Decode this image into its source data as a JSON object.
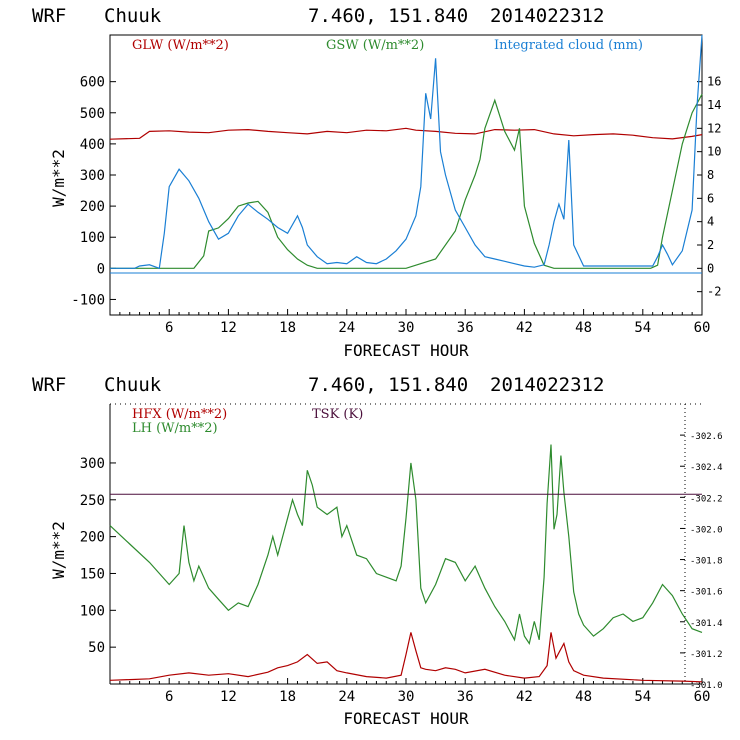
{
  "header": {
    "model": "WRF",
    "station": "Chuuk",
    "coords": "7.460, 151.840",
    "init": "2014022312"
  },
  "colors": {
    "red": "#b00000",
    "green": "#2e8b2e",
    "blue": "#1a7fd4",
    "purple": "#4b0f3b",
    "axis": "#000000"
  },
  "chart_data": [
    {
      "type": "line",
      "panel": "top",
      "xlabel": "FORECAST HOUR",
      "ylabel": "W/m**2",
      "xlim": [
        0,
        60
      ],
      "ylim": [
        -150,
        750
      ],
      "y2lim": [
        -4,
        20
      ],
      "xticks": [
        6,
        12,
        18,
        24,
        30,
        36,
        42,
        48,
        54,
        60
      ],
      "xtick_labels": [
        "6",
        "12",
        "18",
        "24",
        "30",
        "36",
        "42",
        "48",
        "54",
        "60"
      ],
      "yticks": [
        -100,
        0,
        100,
        200,
        300,
        400,
        500,
        600
      ],
      "ytick_labels": [
        "-100",
        "0",
        "100",
        "200",
        "300",
        "400",
        "500",
        "600"
      ],
      "y2ticks": [
        -2,
        0,
        2,
        4,
        6,
        8,
        10,
        12,
        14,
        16
      ],
      "y2tick_labels": [
        "-2",
        "0",
        "2",
        "4",
        "6",
        "8",
        "10",
        "12",
        "14",
        "16"
      ],
      "legend": [
        "GLW (W/m**2)",
        "GSW (W/m**2)",
        "Integrated cloud (mm)"
      ],
      "series": [
        {
          "name": "GLW (W/m**2)",
          "color": "red",
          "axis": "left",
          "x": [
            0,
            3,
            4,
            6,
            8,
            10,
            12,
            14,
            16,
            18,
            20,
            22,
            24,
            26,
            28,
            30,
            31,
            33,
            35,
            37,
            39,
            41,
            43,
            45,
            47,
            49,
            51,
            53,
            55,
            57,
            59,
            60
          ],
          "y": [
            415,
            418,
            440,
            442,
            438,
            436,
            444,
            446,
            440,
            436,
            432,
            440,
            436,
            444,
            442,
            450,
            444,
            440,
            434,
            432,
            446,
            444,
            446,
            432,
            426,
            430,
            432,
            428,
            420,
            416,
            424,
            430
          ]
        },
        {
          "name": "GSW (W/m**2)",
          "color": "green",
          "axis": "left",
          "x": [
            0,
            8.5,
            9.5,
            10,
            11,
            12,
            13,
            14,
            15,
            16,
            17,
            18,
            19,
            20,
            21,
            24,
            30,
            33,
            35,
            36,
            37,
            37.5,
            38,
            39,
            40,
            41,
            41.5,
            42,
            43,
            44,
            45,
            54.8,
            55.5,
            56,
            57,
            58,
            59,
            60
          ],
          "y": [
            0,
            0,
            40,
            120,
            130,
            160,
            200,
            210,
            215,
            180,
            100,
            60,
            30,
            10,
            0,
            0,
            0,
            30,
            120,
            220,
            300,
            350,
            450,
            540,
            440,
            380,
            450,
            200,
            80,
            10,
            0,
            0,
            10,
            100,
            250,
            400,
            500,
            560
          ]
        },
        {
          "name": "Integrated cloud (mm)",
          "color": "blue",
          "axis": "right",
          "x": [
            0,
            2.5,
            3,
            4,
            5,
            5.5,
            6,
            7,
            8,
            9,
            10,
            11,
            12,
            13,
            14,
            15,
            16,
            17,
            18,
            19,
            19.5,
            20,
            21,
            22,
            23,
            24,
            25,
            26,
            27,
            28,
            29,
            30,
            31,
            31.5,
            32,
            32.5,
            33,
            33.5,
            34,
            35,
            36,
            37,
            38,
            39,
            40,
            41,
            42,
            43,
            44,
            44.5,
            45,
            45.5,
            46,
            46.5,
            47,
            48,
            55,
            55.5,
            56,
            56.5,
            57,
            58,
            59,
            59.5,
            60
          ],
          "y": [
            0,
            0,
            0.2,
            0.3,
            0,
            3,
            7,
            8.5,
            7.5,
            6,
            4,
            2.5,
            3,
            4.5,
            5.5,
            4.8,
            4.2,
            3.5,
            3,
            4.5,
            3.5,
            2,
            1,
            0.4,
            0.5,
            0.4,
            1,
            0.5,
            0.4,
            0.8,
            1.5,
            2.5,
            4.5,
            7,
            15,
            12.8,
            18,
            10,
            8,
            5,
            3.5,
            2,
            1,
            0.8,
            0.6,
            0.4,
            0.2,
            0.1,
            0.3,
            2,
            4,
            5.5,
            4.2,
            11,
            2,
            0.2,
            0.2,
            1,
            2,
            1.2,
            0.3,
            1.5,
            5,
            14,
            20
          ]
        }
      ]
    },
    {
      "type": "line",
      "panel": "bottom",
      "xlabel": "FORECAST HOUR",
      "ylabel": "W/m**2",
      "xlim": [
        0,
        60
      ],
      "ylim": [
        0,
        380
      ],
      "y2lim": [
        301.0,
        302.8
      ],
      "xticks": [
        6,
        12,
        18,
        24,
        30,
        36,
        42,
        48,
        54,
        60
      ],
      "xtick_labels": [
        "6",
        "12",
        "18",
        "24",
        "30",
        "36",
        "42",
        "48",
        "54",
        "60"
      ],
      "yticks": [
        50,
        100,
        150,
        200,
        250,
        300
      ],
      "ytick_labels": [
        "50",
        "100",
        "150",
        "200",
        "250",
        "300"
      ],
      "y2ticks": [
        301.0,
        301.2,
        301.4,
        301.6,
        301.8,
        302.0,
        302.2,
        302.4,
        302.6
      ],
      "y2tick_labels": [
        "301.0",
        "301.2",
        "301.4",
        "301.6",
        "301.8",
        "302.0",
        "302.2",
        "302.4",
        "302.6"
      ],
      "legend": [
        "HFX (W/m**2)",
        "LH (W/m**2)",
        "TSK (K)"
      ],
      "series": [
        {
          "name": "HFX (W/m**2)",
          "color": "red",
          "axis": "left",
          "x": [
            0,
            2,
            4,
            6,
            8,
            10,
            12,
            14,
            16,
            17,
            18,
            19,
            20,
            21,
            22,
            23,
            24,
            26,
            28,
            29.5,
            30,
            30.5,
            31,
            31.5,
            32,
            33,
            34,
            35,
            36,
            38,
            40,
            42,
            43.5,
            44.3,
            44.7,
            45.2,
            45.6,
            46,
            46.5,
            47,
            48,
            50,
            54,
            58,
            60
          ],
          "y": [
            5,
            6,
            7,
            12,
            15,
            12,
            14,
            10,
            16,
            22,
            25,
            30,
            40,
            28,
            30,
            18,
            15,
            10,
            8,
            12,
            40,
            70,
            45,
            22,
            20,
            18,
            22,
            20,
            15,
            20,
            12,
            8,
            10,
            25,
            70,
            35,
            45,
            55,
            30,
            18,
            12,
            8,
            5,
            4,
            3
          ]
        },
        {
          "name": "LH (W/m**2)",
          "color": "green",
          "axis": "left",
          "x": [
            0,
            2,
            4,
            6,
            7,
            7.5,
            8,
            8.5,
            9,
            10,
            11,
            12,
            13,
            14,
            15,
            16,
            16.5,
            17,
            18,
            18.5,
            19,
            19.5,
            20,
            20.5,
            21,
            22,
            23,
            23.5,
            24,
            25,
            26,
            27,
            28,
            29,
            29.5,
            30,
            30.5,
            31,
            31.5,
            32,
            33,
            34,
            35,
            36,
            37,
            38,
            39,
            40,
            41,
            41.5,
            42,
            42.5,
            43,
            43.5,
            44,
            44.3,
            44.7,
            45,
            45.3,
            45.7,
            46,
            46.5,
            47,
            47.5,
            48,
            49,
            50,
            51,
            52,
            53,
            54,
            55,
            56,
            57,
            58,
            59,
            60
          ],
          "y": [
            215,
            190,
            165,
            135,
            150,
            215,
            165,
            140,
            160,
            130,
            115,
            100,
            110,
            105,
            135,
            175,
            200,
            175,
            225,
            250,
            230,
            215,
            290,
            270,
            240,
            230,
            240,
            200,
            215,
            175,
            170,
            150,
            145,
            140,
            160,
            225,
            300,
            250,
            130,
            110,
            135,
            170,
            165,
            140,
            160,
            130,
            105,
            85,
            60,
            95,
            65,
            55,
            85,
            60,
            145,
            245,
            325,
            210,
            230,
            310,
            260,
            200,
            125,
            95,
            80,
            65,
            75,
            90,
            95,
            85,
            90,
            110,
            135,
            120,
            95,
            75,
            70
          ]
        },
        {
          "name": "TSK (K)",
          "color": "purple",
          "axis": "right",
          "x": [
            0,
            60
          ],
          "y": [
            302.22,
            302.22
          ]
        }
      ]
    }
  ]
}
